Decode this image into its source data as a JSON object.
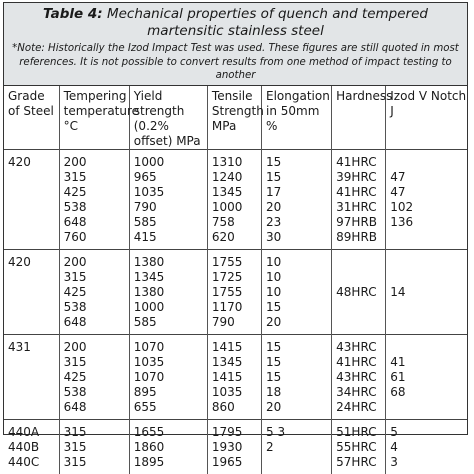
{
  "title_bold": "Table 4:",
  "title_rest": " Mechanical properties of quench and tempered martensitic stainless steel",
  "note": "*Note: Historically the Izod Impact Test was used. These figures are still quoted in most references. It is not possible to convert results from one method of impact testing to another",
  "headers": [
    "Grade of Steel",
    "Tempering temperature °C",
    "Yield strength (0.2% offset) MPa",
    "Tensile Strength MPa",
    "Elongation in 50mm %",
    "Hardness",
    "Izod V Notch J"
  ],
  "groups": [
    {
      "grade": [
        "420"
      ],
      "temp": [
        "200",
        "315",
        "425",
        "538",
        "648",
        "760"
      ],
      "yield": [
        "1000",
        "965",
        "1035",
        "790",
        "585",
        "415"
      ],
      "tensile": [
        "1310",
        "1240",
        "1345",
        "1000",
        "758",
        "620"
      ],
      "elong": [
        "15",
        "15",
        "17",
        "20",
        "23",
        "30"
      ],
      "hardness": [
        "41HRC",
        "39HRC",
        "41HRC",
        "31HRC",
        "97HRB",
        "89HRB"
      ],
      "izod": [
        "",
        "47",
        "47",
        "102",
        "136",
        ""
      ]
    },
    {
      "grade": [
        "420"
      ],
      "temp": [
        "200",
        "315",
        "425",
        "538",
        "648"
      ],
      "yield": [
        "1380",
        "1345",
        "1380",
        "1000",
        "585"
      ],
      "tensile": [
        "1755",
        "1725",
        "1755",
        "1170",
        "790"
      ],
      "elong": [
        "10",
        "10",
        "10",
        "15",
        "20"
      ],
      "hardness": [
        "",
        "",
        "48HRC",
        "",
        ""
      ],
      "izod": [
        "",
        "",
        "14",
        "",
        ""
      ]
    },
    {
      "grade": [
        "431"
      ],
      "temp": [
        "200",
        "315",
        "425",
        "538",
        "648"
      ],
      "yield": [
        "1070",
        "1035",
        "1070",
        "895",
        "655"
      ],
      "tensile": [
        "1415",
        "1345",
        "1415",
        "1035",
        "860"
      ],
      "elong": [
        "15",
        "15",
        "15",
        "18",
        "20"
      ],
      "hardness": [
        "43HRC",
        "41HRC",
        "43HRC",
        "34HRC",
        "24HRC"
      ],
      "izod": [
        "",
        "41",
        "61",
        "68",
        ""
      ]
    },
    {
      "grade": [
        "440A",
        "440B",
        "440C"
      ],
      "temp": [
        "315",
        "315",
        "315"
      ],
      "yield": [
        "1655",
        "1860",
        "1895"
      ],
      "tensile": [
        "1795",
        "1930",
        "1965"
      ],
      "elong": [
        "5  3",
        "2",
        ""
      ],
      "hardness": [
        "51HRC",
        "55HRC",
        "57HRC"
      ],
      "izod": [
        "5",
        "4",
        "3"
      ]
    }
  ]
}
